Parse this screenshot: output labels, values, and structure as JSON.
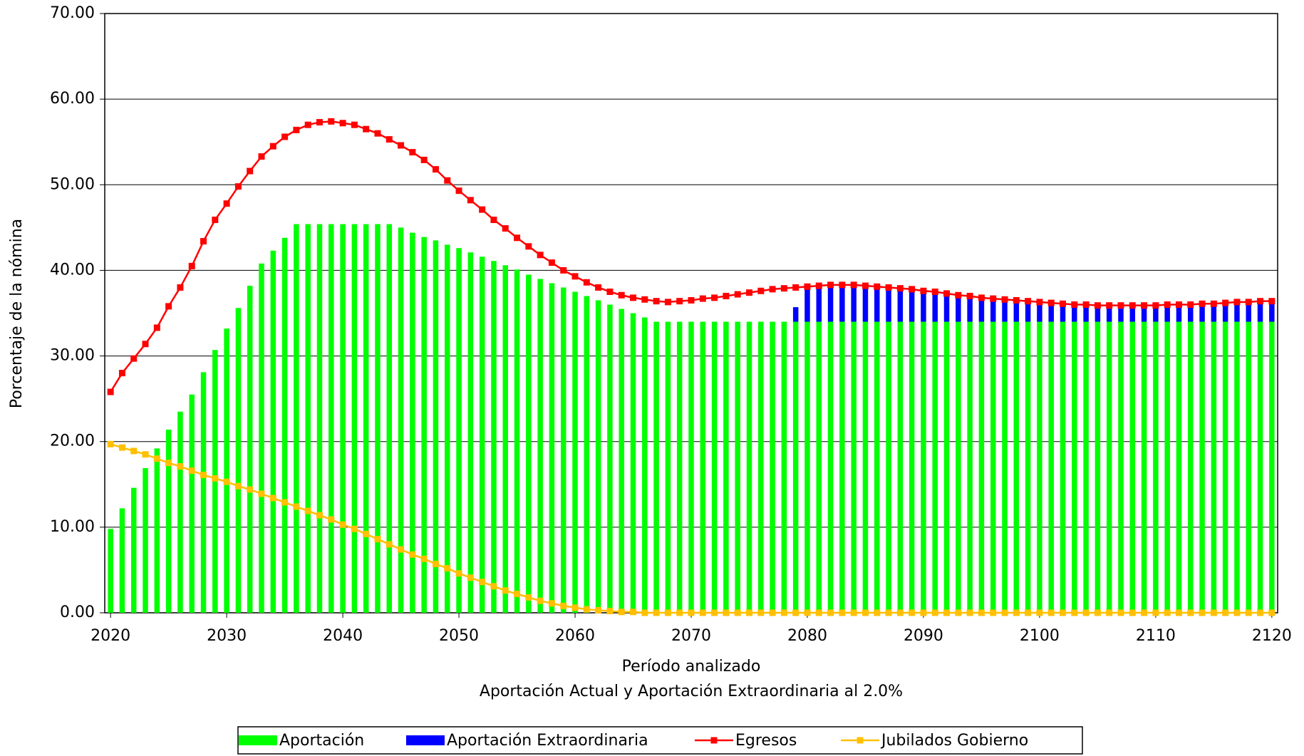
{
  "chart_data": {
    "type": "bar",
    "x_label": "Período analizado",
    "subtitle": "Aportación Actual y Aportación Extraordinaria al 2.0%",
    "y_label": "Porcentaje de la nómina",
    "x": [
      2020,
      2021,
      2022,
      2023,
      2024,
      2025,
      2026,
      2027,
      2028,
      2029,
      2030,
      2031,
      2032,
      2033,
      2034,
      2035,
      2036,
      2037,
      2038,
      2039,
      2040,
      2041,
      2042,
      2043,
      2044,
      2045,
      2046,
      2047,
      2048,
      2049,
      2050,
      2051,
      2052,
      2053,
      2054,
      2055,
      2056,
      2057,
      2058,
      2059,
      2060,
      2061,
      2062,
      2063,
      2064,
      2065,
      2066,
      2067,
      2068,
      2069,
      2070,
      2071,
      2072,
      2073,
      2074,
      2075,
      2076,
      2077,
      2078,
      2079,
      2080,
      2081,
      2082,
      2083,
      2084,
      2085,
      2086,
      2087,
      2088,
      2089,
      2090,
      2091,
      2092,
      2093,
      2094,
      2095,
      2096,
      2097,
      2098,
      2099,
      2100,
      2101,
      2102,
      2103,
      2104,
      2105,
      2106,
      2107,
      2108,
      2109,
      2110,
      2111,
      2112,
      2113,
      2114,
      2115,
      2116,
      2117,
      2118,
      2119,
      2120
    ],
    "xlim": [
      2019.5,
      2120.5
    ],
    "xticks": [
      2020,
      2030,
      2040,
      2050,
      2060,
      2070,
      2080,
      2090,
      2100,
      2110,
      2120
    ],
    "ylim": [
      0,
      70
    ],
    "yticks": [
      {
        "value": 0,
        "label": "0.00"
      },
      {
        "value": 10,
        "label": "10.00"
      },
      {
        "value": 20,
        "label": "20.00"
      },
      {
        "value": 30,
        "label": "30.00"
      },
      {
        "value": 40,
        "label": "40.00"
      },
      {
        "value": 50,
        "label": "50.00"
      },
      {
        "value": 60,
        "label": "60.00"
      },
      {
        "value": 70,
        "label": "70.00"
      }
    ],
    "grid": true,
    "legend": "bottom",
    "series": [
      {
        "name": "Aportación",
        "kind": "bar",
        "color": "#00ff00",
        "values": [
          9.8,
          12.2,
          14.6,
          16.9,
          19.2,
          21.4,
          23.5,
          25.5,
          28.1,
          30.7,
          33.2,
          35.6,
          38.2,
          40.8,
          42.3,
          43.8,
          45.4,
          45.4,
          45.4,
          45.4,
          45.4,
          45.4,
          45.4,
          45.4,
          45.4,
          45.0,
          44.4,
          43.9,
          43.5,
          43.0,
          42.6,
          42.1,
          41.6,
          41.1,
          40.6,
          40.1,
          39.5,
          39.0,
          38.5,
          38.0,
          37.5,
          37.0,
          36.5,
          36.0,
          35.5,
          35.0,
          34.5,
          34,
          34,
          34,
          34,
          34,
          34,
          34,
          34,
          34,
          34,
          34,
          34,
          34,
          34,
          34,
          34,
          34,
          34,
          34,
          34,
          34,
          34,
          34,
          34,
          34,
          34,
          34,
          34,
          34,
          34,
          34,
          34,
          34,
          34,
          34,
          34,
          34,
          34,
          34,
          34,
          34,
          34,
          34,
          34,
          34,
          34,
          34,
          34,
          34,
          34,
          34,
          34,
          34,
          34
        ]
      },
      {
        "name": "Aportación Extraordinaria",
        "kind": "bar",
        "color": "#0000ff",
        "values": [
          0,
          0,
          0,
          0,
          0,
          0,
          0,
          0,
          0,
          0,
          0,
          0,
          0,
          0,
          0,
          0,
          0,
          0,
          0,
          0,
          0,
          0,
          0,
          0,
          0,
          0,
          0,
          0,
          0,
          0,
          0,
          0,
          0,
          0,
          0,
          0,
          0,
          0,
          0,
          0,
          0,
          0,
          0,
          0,
          0,
          0,
          0,
          0,
          0,
          0,
          0,
          0,
          0,
          0,
          0,
          0,
          0,
          0,
          0,
          1.7,
          3.9,
          4.0,
          4.1,
          4.1,
          4.1,
          4.0,
          3.9,
          3.8,
          3.7,
          3.6,
          3.4,
          3.3,
          3.1,
          2.9,
          2.8,
          2.6,
          2.5,
          2.4,
          2.3,
          2.2,
          2.1,
          2.0,
          1.9,
          1.8,
          1.8,
          1.7,
          1.7,
          1.7,
          1.7,
          1.7,
          1.7,
          1.8,
          1.8,
          1.8,
          1.9,
          1.9,
          2.0,
          2.1,
          2.1,
          2.2,
          2.2
        ]
      },
      {
        "name": "Egresos",
        "kind": "line",
        "color": "#ff0000",
        "values": [
          25.8,
          28.0,
          29.7,
          31.4,
          33.3,
          35.8,
          38.0,
          40.5,
          43.4,
          45.9,
          47.8,
          49.8,
          51.6,
          53.3,
          54.5,
          55.6,
          56.4,
          57.0,
          57.3,
          57.4,
          57.2,
          57.0,
          56.5,
          56.0,
          55.3,
          54.6,
          53.8,
          52.9,
          51.8,
          50.5,
          49.3,
          48.2,
          47.1,
          45.9,
          44.9,
          43.8,
          42.8,
          41.8,
          40.9,
          40.0,
          39.3,
          38.6,
          38.0,
          37.5,
          37.1,
          36.8,
          36.6,
          36.4,
          36.3,
          36.4,
          36.5,
          36.7,
          36.8,
          37.0,
          37.2,
          37.4,
          37.6,
          37.8,
          37.9,
          38.0,
          38.1,
          38.2,
          38.3,
          38.3,
          38.3,
          38.2,
          38.1,
          38.0,
          37.9,
          37.8,
          37.6,
          37.5,
          37.3,
          37.1,
          37.0,
          36.8,
          36.7,
          36.6,
          36.5,
          36.4,
          36.3,
          36.2,
          36.1,
          36.0,
          36.0,
          35.9,
          35.9,
          35.9,
          35.9,
          35.9,
          35.9,
          36.0,
          36.0,
          36.0,
          36.1,
          36.1,
          36.2,
          36.3,
          36.3,
          36.4,
          36.4
        ]
      },
      {
        "name": "Jubilados Gobierno",
        "kind": "line",
        "color": "#ffc000",
        "values": [
          19.7,
          19.3,
          18.9,
          18.5,
          18.0,
          17.5,
          17.1,
          16.6,
          16.1,
          15.7,
          15.3,
          14.8,
          14.4,
          13.9,
          13.4,
          12.9,
          12.4,
          11.9,
          11.4,
          10.9,
          10.3,
          9.8,
          9.2,
          8.6,
          8.0,
          7.4,
          6.8,
          6.3,
          5.7,
          5.2,
          4.6,
          4.1,
          3.6,
          3.1,
          2.6,
          2.2,
          1.8,
          1.4,
          1.1,
          0.8,
          0.6,
          0.4,
          0.3,
          0.2,
          0.1,
          0.1,
          0,
          0,
          0,
          0,
          0,
          0,
          0,
          0,
          0,
          0,
          0,
          0,
          0,
          0,
          0,
          0,
          0,
          0,
          0,
          0,
          0,
          0,
          0,
          0,
          0,
          0,
          0,
          0,
          0,
          0,
          0,
          0,
          0,
          0,
          0,
          0,
          0,
          0,
          0,
          0,
          0,
          0,
          0,
          0,
          0,
          0,
          0,
          0,
          0,
          0,
          0,
          0,
          0,
          0,
          0
        ]
      }
    ]
  }
}
